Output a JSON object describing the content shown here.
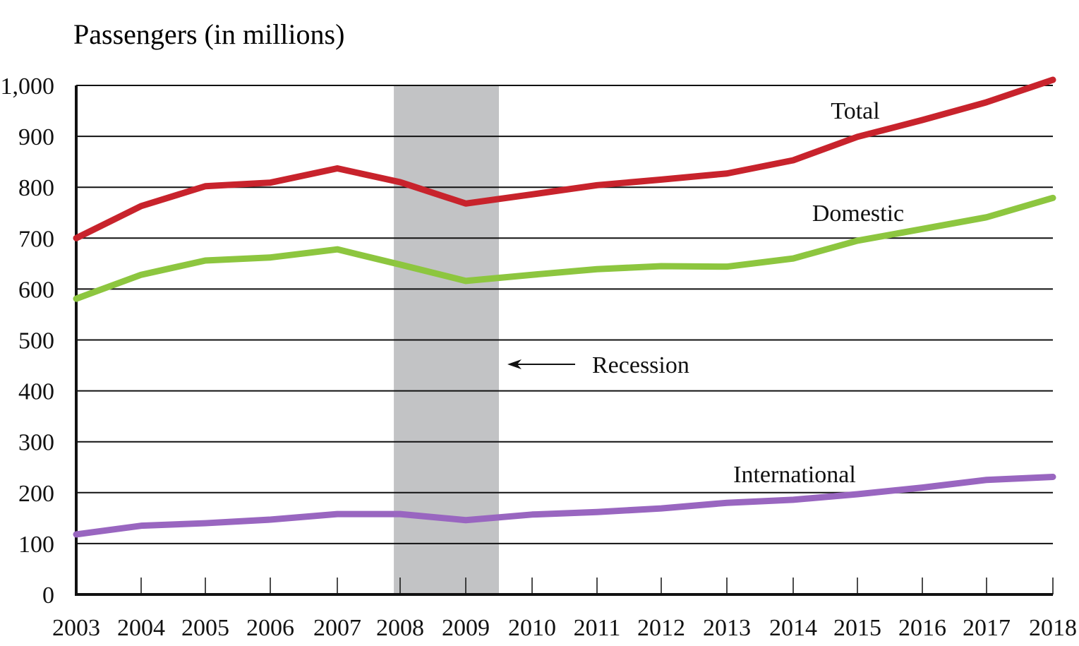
{
  "chart_data": {
    "type": "line",
    "title": "",
    "ylabel": "Passengers (in millions)",
    "xlabel": "",
    "ylim": [
      0,
      1000
    ],
    "yticks": [
      0,
      100,
      200,
      300,
      400,
      500,
      600,
      700,
      800,
      900,
      1000
    ],
    "ytick_labels": [
      "0",
      "100",
      "200",
      "300",
      "400",
      "500",
      "600",
      "700",
      "800",
      "900",
      "1,000"
    ],
    "grid": true,
    "categories": [
      "2003",
      "2004",
      "2005",
      "2006",
      "2007",
      "2008",
      "2009",
      "2010",
      "2011",
      "2012",
      "2013",
      "2014",
      "2015",
      "2016",
      "2017",
      "2018"
    ],
    "series": [
      {
        "name": "Total",
        "color": "#c8232c",
        "values": [
          700,
          763,
          802,
          809,
          837,
          810,
          768,
          786,
          804,
          815,
          827,
          853,
          899,
          932,
          967,
          1011
        ]
      },
      {
        "name": "Domestic",
        "color": "#8dc63f",
        "values": [
          581,
          628,
          656,
          662,
          678,
          648,
          616,
          628,
          639,
          645,
          644,
          660,
          695,
          718,
          741,
          779
        ]
      },
      {
        "name": "International",
        "color": "#9966c0",
        "values": [
          118,
          135,
          140,
          147,
          158,
          158,
          146,
          157,
          162,
          169,
          180,
          186,
          197,
          210,
          225,
          231
        ]
      }
    ],
    "annotations": [
      {
        "type": "shaded-band",
        "label": "Recession",
        "from": "2007.9",
        "to": "2009.5",
        "color": "#c2c3c5"
      }
    ],
    "legend": "inline-labels"
  }
}
